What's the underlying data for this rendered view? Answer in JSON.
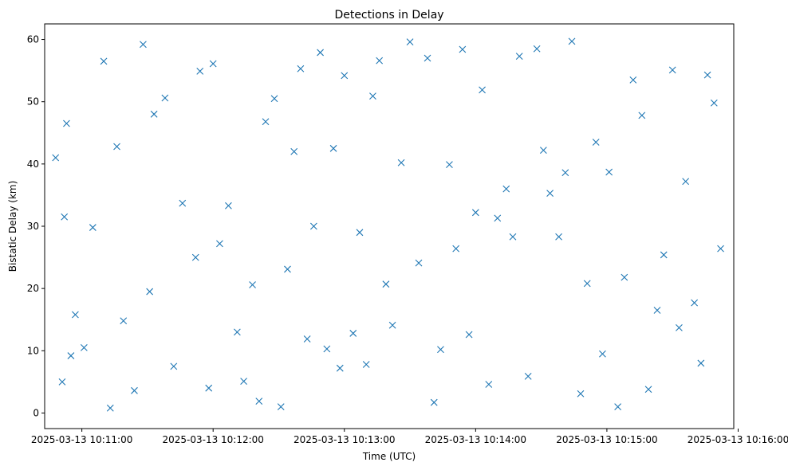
{
  "chart_data": {
    "type": "scatter",
    "title": "Detections in Delay",
    "xlabel": "Time (UTC)",
    "ylabel": "Bistatic Delay (km)",
    "marker": "x",
    "color": "#1f77b4",
    "grid": false,
    "legend": "none",
    "xlim": [
      "2025-03-13 10:10:43",
      "2025-03-13 10:15:58"
    ],
    "ylim": [
      -2.5,
      62.5
    ],
    "x_ticks": [
      "2025-03-13 10:11:00",
      "2025-03-13 10:12:00",
      "2025-03-13 10:13:00",
      "2025-03-13 10:14:00",
      "2025-03-13 10:15:00",
      "2025-03-13 10:16:00"
    ],
    "y_ticks": [
      0,
      10,
      20,
      30,
      40,
      50,
      60
    ],
    "series": [
      {
        "x": [
          "2025-03-13 10:10:48",
          "2025-03-13 10:10:51",
          "2025-03-13 10:10:52",
          "2025-03-13 10:10:53",
          "2025-03-13 10:10:55",
          "2025-03-13 10:10:57",
          "2025-03-13 10:11:01",
          "2025-03-13 10:11:05",
          "2025-03-13 10:11:10",
          "2025-03-13 10:11:13",
          "2025-03-13 10:11:16",
          "2025-03-13 10:11:19",
          "2025-03-13 10:11:24",
          "2025-03-13 10:11:28",
          "2025-03-13 10:11:31",
          "2025-03-13 10:11:33",
          "2025-03-13 10:11:38",
          "2025-03-13 10:11:42",
          "2025-03-13 10:11:46",
          "2025-03-13 10:11:52",
          "2025-03-13 10:11:54",
          "2025-03-13 10:11:58",
          "2025-03-13 10:12:00",
          "2025-03-13 10:12:03",
          "2025-03-13 10:12:07",
          "2025-03-13 10:12:11",
          "2025-03-13 10:12:14",
          "2025-03-13 10:12:18",
          "2025-03-13 10:12:21",
          "2025-03-13 10:12:24",
          "2025-03-13 10:12:28",
          "2025-03-13 10:12:31",
          "2025-03-13 10:12:34",
          "2025-03-13 10:12:37",
          "2025-03-13 10:12:40",
          "2025-03-13 10:12:43",
          "2025-03-13 10:12:46",
          "2025-03-13 10:12:49",
          "2025-03-13 10:12:52",
          "2025-03-13 10:12:55",
          "2025-03-13 10:12:58",
          "2025-03-13 10:13:00",
          "2025-03-13 10:13:04",
          "2025-03-13 10:13:07",
          "2025-03-13 10:13:10",
          "2025-03-13 10:13:13",
          "2025-03-13 10:13:16",
          "2025-03-13 10:13:19",
          "2025-03-13 10:13:22",
          "2025-03-13 10:13:26",
          "2025-03-13 10:13:30",
          "2025-03-13 10:13:34",
          "2025-03-13 10:13:38",
          "2025-03-13 10:13:41",
          "2025-03-13 10:13:44",
          "2025-03-13 10:13:48",
          "2025-03-13 10:13:51",
          "2025-03-13 10:13:54",
          "2025-03-13 10:13:57",
          "2025-03-13 10:14:00",
          "2025-03-13 10:14:03",
          "2025-03-13 10:14:06",
          "2025-03-13 10:14:10",
          "2025-03-13 10:14:14",
          "2025-03-13 10:14:17",
          "2025-03-13 10:14:20",
          "2025-03-13 10:14:24",
          "2025-03-13 10:14:28",
          "2025-03-13 10:14:31",
          "2025-03-13 10:14:34",
          "2025-03-13 10:14:38",
          "2025-03-13 10:14:41",
          "2025-03-13 10:14:44",
          "2025-03-13 10:14:48",
          "2025-03-13 10:14:51",
          "2025-03-13 10:14:55",
          "2025-03-13 10:14:58",
          "2025-03-13 10:15:01",
          "2025-03-13 10:15:05",
          "2025-03-13 10:15:08",
          "2025-03-13 10:15:12",
          "2025-03-13 10:15:16",
          "2025-03-13 10:15:19",
          "2025-03-13 10:15:23",
          "2025-03-13 10:15:26",
          "2025-03-13 10:15:30",
          "2025-03-13 10:15:33",
          "2025-03-13 10:15:36",
          "2025-03-13 10:15:40",
          "2025-03-13 10:15:43",
          "2025-03-13 10:15:46",
          "2025-03-13 10:15:49",
          "2025-03-13 10:15:52"
        ],
        "y": [
          41.0,
          5.0,
          31.5,
          46.5,
          9.2,
          15.8,
          10.5,
          29.8,
          56.5,
          0.8,
          42.8,
          14.8,
          3.6,
          59.2,
          19.5,
          48.0,
          50.6,
          7.5,
          33.7,
          25.0,
          54.9,
          4.0,
          56.1,
          27.2,
          33.3,
          13.0,
          5.1,
          20.6,
          1.9,
          46.8,
          50.5,
          1.0,
          23.1,
          42.0,
          55.3,
          11.9,
          30.0,
          57.9,
          10.3,
          42.5,
          7.2,
          54.2,
          12.8,
          29.0,
          7.8,
          50.9,
          56.6,
          20.7,
          14.1,
          40.2,
          59.6,
          24.1,
          57.0,
          1.7,
          10.2,
          39.9,
          26.4,
          58.4,
          12.6,
          32.2,
          51.9,
          4.6,
          31.3,
          36.0,
          28.3,
          57.3,
          5.9,
          58.5,
          42.2,
          35.3,
          28.3,
          38.6,
          59.7,
          3.1,
          20.8,
          43.5,
          9.5,
          38.7,
          1.0,
          21.8,
          53.5,
          47.8,
          3.8,
          16.5,
          25.4,
          55.1,
          13.7,
          37.2,
          17.7,
          8.0,
          54.3,
          49.8,
          26.4
        ]
      }
    ]
  }
}
